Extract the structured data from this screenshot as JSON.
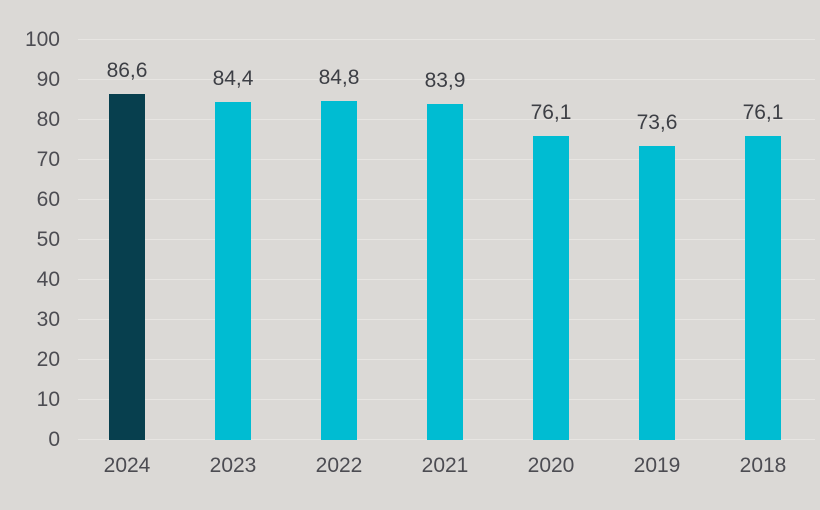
{
  "colors": {
    "background": "#dbd9d6",
    "bar_default": "#00bcd2",
    "bar_highlight": "#073f4e",
    "gridline": "#e7e5e2",
    "axis_label": "#4c4c52",
    "value_label": "#3d3f45"
  },
  "chart_data": {
    "type": "bar",
    "title": "",
    "xlabel": "",
    "ylabel": "",
    "categories": [
      "2024",
      "2023",
      "2022",
      "2021",
      "2020",
      "2019",
      "2018"
    ],
    "values": [
      86.6,
      84.4,
      84.8,
      83.9,
      76.1,
      73.6,
      76.1
    ],
    "value_labels": [
      "86,6",
      "84,4",
      "84,8",
      "83,9",
      "76,1",
      "73,6",
      "76,1"
    ],
    "highlight_category": "2024",
    "decimal_separator": ",",
    "ylim": [
      0,
      100
    ],
    "y_ticks": [
      100,
      90,
      80,
      70,
      60,
      50,
      40,
      30,
      20,
      10,
      0
    ],
    "grid": "horizontal",
    "legend": "none"
  }
}
